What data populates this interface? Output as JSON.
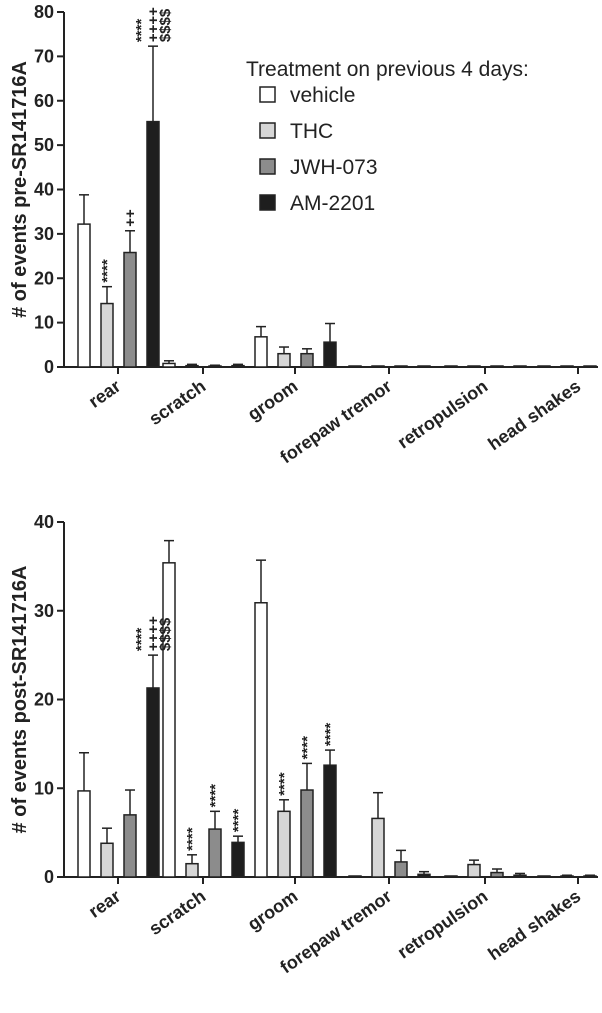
{
  "legend": {
    "title": "Treatment on previous 4 days:",
    "placement": "top-right of top panel"
  },
  "colors": {
    "vehicle": "#ffffff",
    "THC": "#d6d6d6",
    "JWH-073": "#8c8c8c",
    "AM-2201": "#1e1e1e",
    "stroke": "#222222"
  },
  "chart_data": [
    {
      "type": "bar",
      "title": "",
      "xlabel": "",
      "ylabel": "# of events pre-SR141716A",
      "ylim": [
        0,
        80
      ],
      "yticks": [
        0,
        10,
        20,
        30,
        40,
        50,
        60,
        70,
        80
      ],
      "grid": false,
      "categories": [
        "rear",
        "scratch",
        "groom",
        "forepaw tremor",
        "retropulsion",
        "head shakes"
      ],
      "series": [
        {
          "name": "vehicle",
          "values": [
            32.2,
            0.8,
            6.8,
            0,
            0,
            0
          ],
          "errors": [
            6.6,
            0.6,
            2.3,
            0,
            0,
            0
          ]
        },
        {
          "name": "THC",
          "values": [
            14.3,
            0.3,
            3.0,
            0,
            0,
            0
          ],
          "errors": [
            3.8,
            0.3,
            1.5,
            0,
            0,
            0
          ]
        },
        {
          "name": "JWH-073",
          "values": [
            25.8,
            0.2,
            3.0,
            0,
            0,
            0
          ],
          "errors": [
            4.9,
            0.2,
            1.1,
            0,
            0,
            0
          ]
        },
        {
          "name": "AM-2201",
          "values": [
            55.3,
            0.3,
            5.6,
            0,
            0,
            0
          ],
          "errors": [
            17.0,
            0.3,
            4.2,
            0,
            0,
            0
          ]
        }
      ],
      "annotations": [
        {
          "category": 0,
          "series": 1,
          "lines": [
            "****"
          ]
        },
        {
          "category": 0,
          "series": 2,
          "lines": [
            "++"
          ]
        },
        {
          "category": 0,
          "series": 3,
          "lines": [
            "****",
            "++++",
            "$$$$"
          ]
        }
      ]
    },
    {
      "type": "bar",
      "title": "",
      "xlabel": "",
      "ylabel": "# of events post-SR141716A",
      "ylim": [
        0,
        40
      ],
      "yticks": [
        0,
        10,
        20,
        30,
        40
      ],
      "grid": false,
      "categories": [
        "rear",
        "scratch",
        "groom",
        "forepaw tremor",
        "retropulsion",
        "head shakes"
      ],
      "series": [
        {
          "name": "vehicle",
          "values": [
            9.7,
            35.4,
            30.9,
            0,
            0,
            0
          ],
          "errors": [
            4.3,
            2.5,
            4.8,
            0,
            0,
            0
          ]
        },
        {
          "name": "THC",
          "values": [
            3.8,
            1.5,
            7.4,
            6.6,
            1.4,
            0.1
          ],
          "errors": [
            1.7,
            1.0,
            1.3,
            2.9,
            0.5,
            0.1
          ]
        },
        {
          "name": "JWH-073",
          "values": [
            7.0,
            5.4,
            9.8,
            1.7,
            0.5,
            0.1
          ],
          "errors": [
            2.8,
            2.0,
            3.0,
            1.3,
            0.4,
            0.1
          ]
        },
        {
          "name": "AM-2201",
          "values": [
            21.3,
            3.9,
            12.6,
            0.3,
            0.2,
            0.1
          ],
          "errors": [
            3.7,
            0.7,
            1.7,
            0.3,
            0.2,
            0.1
          ]
        }
      ],
      "annotations": [
        {
          "category": 0,
          "series": 3,
          "lines": [
            "****",
            "++++",
            "$$$$"
          ]
        },
        {
          "category": 1,
          "series": 1,
          "lines": [
            "****"
          ]
        },
        {
          "category": 1,
          "series": 2,
          "lines": [
            "****"
          ]
        },
        {
          "category": 1,
          "series": 3,
          "lines": [
            "****"
          ]
        },
        {
          "category": 2,
          "series": 1,
          "lines": [
            "****"
          ]
        },
        {
          "category": 2,
          "series": 2,
          "lines": [
            "****"
          ]
        },
        {
          "category": 2,
          "series": 3,
          "lines": [
            "****"
          ]
        }
      ]
    }
  ]
}
